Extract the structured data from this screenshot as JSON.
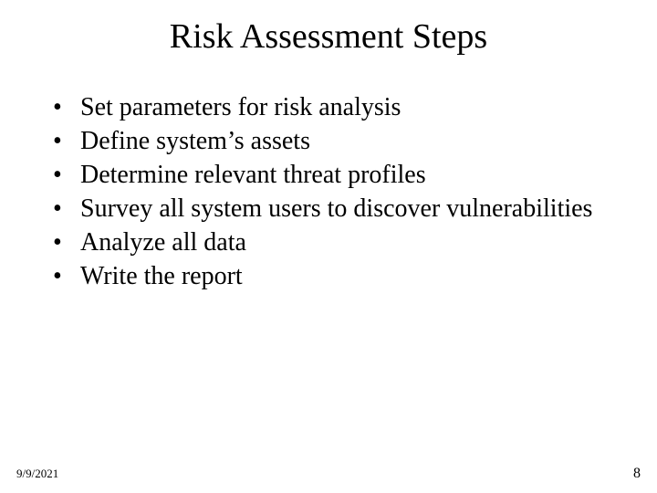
{
  "slide": {
    "title": "Risk Assessment Steps",
    "title_fontsize": 38,
    "title_color": "#000000",
    "background_color": "#ffffff",
    "font_family": "Times New Roman",
    "bullets": [
      "Set parameters for risk analysis",
      "Define system’s assets",
      "Determine relevant threat profiles",
      "Survey all system users to discover vulnerabilities",
      "Analyze all data",
      "Write the report"
    ],
    "bullet_fontsize": 28,
    "bullet_color": "#000000"
  },
  "footer": {
    "date": "9/9/2021",
    "date_fontsize": 13,
    "page_number": "8",
    "page_fontsize": 16
  }
}
